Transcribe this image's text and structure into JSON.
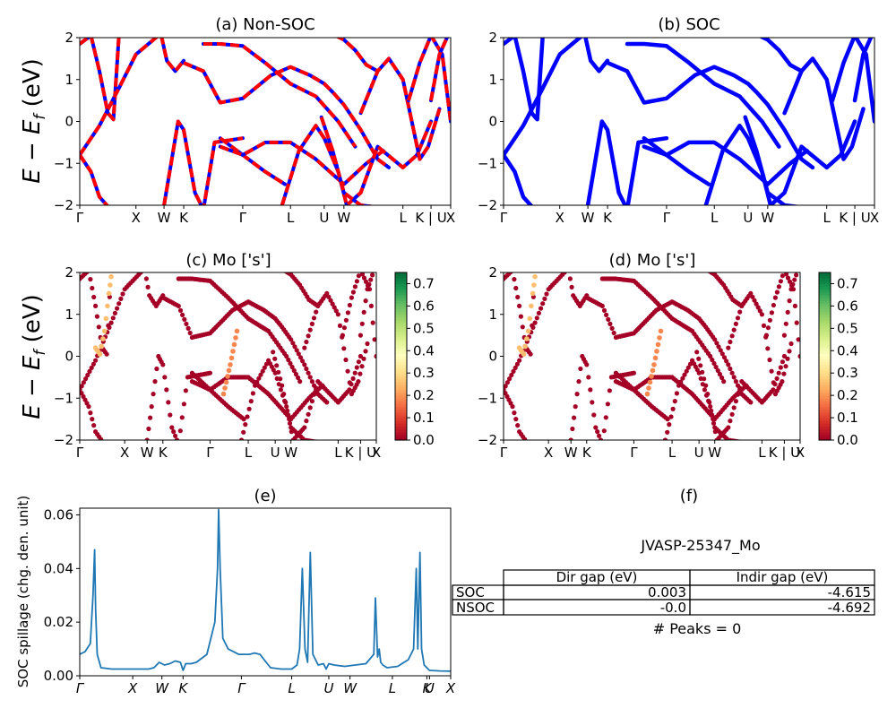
{
  "figure": {
    "ylabel_bands": "E − E",
    "ylabel_bands_sub": "f",
    "ylabel_bands_tail": " (eV)"
  },
  "kpath_labels": [
    "Γ",
    "X",
    "W",
    "K",
    "Γ",
    "L",
    "U",
    "W",
    "L",
    "K | U",
    "X"
  ],
  "kpath_labels_e": [
    "Γ",
    "X",
    "W",
    "K",
    "Γ",
    "L",
    "U",
    "W",
    "L",
    "K",
    "U",
    "X"
  ],
  "colors": {
    "nonsoc_solid": "#0000ff",
    "nonsoc_dash": "#ff0000",
    "soc": "#0000ff",
    "spillage": "#1f77b4"
  },
  "colorbar": {
    "colormap": "RdYlGn",
    "ticks": [
      "0.0",
      "0.1",
      "0.2",
      "0.3",
      "0.4",
      "0.5",
      "0.6",
      "0.7"
    ],
    "range": [
      0,
      0.75
    ]
  },
  "panel_f": {
    "title": "(f)",
    "material": "JVASP-25347_Mo",
    "table": {
      "headers": [
        "",
        "Dir gap (eV)",
        "Indir gap (eV)"
      ],
      "rows": [
        [
          "SOC",
          "0.003",
          "-4.615"
        ],
        [
          "NSOC",
          "-0.0",
          "-4.692"
        ]
      ]
    },
    "peaks": "# Peaks = 0"
  },
  "chart_data": [
    {
      "id": "a",
      "type": "line",
      "title": "(a) Non-SOC",
      "ylim": [
        -2,
        2
      ],
      "yticks": [
        "2",
        "1",
        "0",
        "−1",
        "−2"
      ],
      "xticks": [
        "Γ",
        "X",
        "W",
        "K",
        "Γ",
        "L",
        "U",
        "W",
        "L",
        "K | U",
        "X"
      ],
      "kpos": [
        0,
        1.0,
        1.5,
        1.85,
        2.9,
        3.75,
        4.35,
        4.7,
        5.75,
        6.25,
        6.6
      ],
      "series": [
        {
          "x": [
            0,
            0.2,
            0.35,
            0.5,
            0.6,
            0.7
          ],
          "y": [
            1.85,
            2.05,
            1.2,
            0.2,
            0.05,
            2.1
          ]
        },
        {
          "x": [
            0,
            0.35,
            0.7,
            1.0,
            1.4,
            1.5
          ],
          "y": [
            -0.8,
            -0.1,
            0.8,
            1.6,
            2.05,
            2.1
          ]
        },
        {
          "x": [
            0,
            0.2,
            0.35,
            0.55
          ],
          "y": [
            -0.8,
            -1.2,
            -1.8,
            -2.1
          ]
        },
        {
          "x": [
            1.45,
            1.55,
            1.7,
            1.85
          ],
          "y": [
            2.05,
            1.45,
            1.2,
            1.45
          ]
        },
        {
          "x": [
            1.5,
            1.6,
            1.75,
            1.85,
            2.05,
            2.2,
            2.4,
            2.9
          ],
          "y": [
            -2.0,
            -1.2,
            0.0,
            -0.2,
            -1.7,
            -2.1,
            -0.5,
            -0.4
          ]
        },
        {
          "x": [
            1.85,
            2.2,
            2.5,
            2.9,
            3.4,
            3.75,
            4.1,
            4.35,
            4.5,
            4.7,
            5.0,
            5.3,
            5.5
          ],
          "y": [
            1.4,
            1.2,
            0.45,
            0.55,
            1.1,
            1.3,
            1.1,
            0.9,
            0.7,
            0.4,
            -0.2,
            -0.9,
            -1.1
          ]
        },
        {
          "x": [
            2.2,
            2.5,
            2.9,
            3.3,
            3.75,
            4.2,
            4.6,
            4.9
          ],
          "y": [
            1.85,
            1.85,
            1.8,
            1.4,
            0.9,
            0.6,
            0.0,
            -0.6
          ]
        },
        {
          "x": [
            2.5,
            2.9,
            3.3,
            3.65
          ],
          "y": [
            -0.4,
            -0.8,
            -1.2,
            -1.5
          ]
        },
        {
          "x": [
            2.5,
            2.9,
            3.3,
            3.75,
            4.2,
            4.7,
            5.1,
            5.4
          ],
          "y": [
            -0.6,
            -0.8,
            -0.5,
            -0.5,
            -0.9,
            -1.5,
            -1.0,
            -0.7
          ]
        },
        {
          "x": [
            3.6,
            3.9,
            4.2,
            4.35,
            4.6,
            4.75,
            5.0,
            5.3,
            5.75,
            6.0,
            6.25
          ],
          "y": [
            -2.0,
            -0.7,
            -0.1,
            -0.4,
            -1.2,
            -2.0,
            -1.7,
            -0.6,
            -1.1,
            -0.8,
            0.0
          ]
        },
        {
          "x": [
            4.3,
            4.5,
            4.7,
            5.0,
            5.3,
            5.55
          ],
          "y": [
            0.1,
            -0.7,
            -1.7,
            -2.0,
            -2.05,
            -2.1
          ]
        },
        {
          "x": [
            4.55,
            4.7,
            4.9,
            5.1,
            5.3
          ],
          "y": [
            2.05,
            1.95,
            1.7,
            1.35,
            1.2
          ]
        },
        {
          "x": [
            5.0,
            5.3,
            5.5,
            5.75,
            6.05,
            6.2,
            6.4
          ],
          "y": [
            0.2,
            1.2,
            1.5,
            1.0,
            -0.9,
            -0.6,
            0.3
          ]
        },
        {
          "x": [
            5.85,
            6.05,
            6.25,
            6.45,
            6.6
          ],
          "y": [
            0.5,
            1.4,
            2.05,
            1.6,
            0.0
          ]
        },
        {
          "x": [
            6.25,
            6.4,
            6.55,
            6.6
          ],
          "y": [
            0.5,
            1.6,
            2.05,
            2.1
          ]
        }
      ]
    },
    {
      "id": "b",
      "type": "line",
      "title": "(b) SOC",
      "ylim": [
        -2,
        2
      ],
      "yticks": [
        "2",
        "1",
        "0",
        "−1",
        "−2"
      ],
      "xticks": [
        "Γ",
        "X",
        "W",
        "K",
        "Γ",
        "L",
        "U",
        "W",
        "L",
        "K | U",
        "X"
      ],
      "kpos": [
        0,
        1.0,
        1.5,
        1.85,
        2.9,
        3.75,
        4.35,
        4.7,
        5.75,
        6.25,
        6.6
      ],
      "series": [
        {
          "x": [
            0,
            0.2,
            0.35,
            0.5,
            0.6,
            0.7
          ],
          "y": [
            1.85,
            2.05,
            1.2,
            0.2,
            0.05,
            2.1
          ]
        },
        {
          "x": [
            0,
            0.35,
            0.7,
            1.0,
            1.4,
            1.5
          ],
          "y": [
            -0.8,
            -0.1,
            0.8,
            1.6,
            2.05,
            2.1
          ]
        },
        {
          "x": [
            0,
            0.2,
            0.35,
            0.55
          ],
          "y": [
            -0.8,
            -1.2,
            -1.8,
            -2.1
          ]
        },
        {
          "x": [
            1.45,
            1.55,
            1.7,
            1.85
          ],
          "y": [
            2.05,
            1.45,
            1.2,
            1.45
          ]
        },
        {
          "x": [
            1.5,
            1.6,
            1.75,
            1.85,
            2.05,
            2.2,
            2.4,
            2.9
          ],
          "y": [
            -2.0,
            -1.2,
            0.0,
            -0.2,
            -1.7,
            -2.1,
            -0.5,
            -0.4
          ]
        },
        {
          "x": [
            1.85,
            2.2,
            2.5,
            2.9,
            3.4,
            3.75,
            4.1,
            4.35,
            4.5,
            4.7,
            5.0,
            5.3,
            5.5
          ],
          "y": [
            1.4,
            1.2,
            0.45,
            0.55,
            1.1,
            1.3,
            1.1,
            0.9,
            0.7,
            0.4,
            -0.2,
            -0.9,
            -1.1
          ]
        },
        {
          "x": [
            2.2,
            2.5,
            2.9,
            3.3,
            3.75,
            4.2,
            4.6,
            4.9
          ],
          "y": [
            1.85,
            1.85,
            1.8,
            1.4,
            0.9,
            0.6,
            0.0,
            -0.6
          ]
        },
        {
          "x": [
            2.5,
            2.9,
            3.3,
            3.65
          ],
          "y": [
            -0.4,
            -0.8,
            -1.2,
            -1.5
          ]
        },
        {
          "x": [
            2.5,
            2.9,
            3.3,
            3.75,
            4.2,
            4.7,
            5.1,
            5.4
          ],
          "y": [
            -0.6,
            -0.8,
            -0.5,
            -0.5,
            -0.9,
            -1.5,
            -1.0,
            -0.7
          ]
        },
        {
          "x": [
            3.6,
            3.9,
            4.2,
            4.35,
            4.6,
            4.75,
            5.0,
            5.3,
            5.75,
            6.0,
            6.25
          ],
          "y": [
            -2.0,
            -0.7,
            -0.1,
            -0.4,
            -1.2,
            -2.0,
            -1.7,
            -0.6,
            -1.1,
            -0.8,
            0.0
          ]
        },
        {
          "x": [
            4.3,
            4.5,
            4.7,
            5.0,
            5.3,
            5.55
          ],
          "y": [
            0.1,
            -0.7,
            -1.7,
            -2.0,
            -2.05,
            -2.1
          ]
        },
        {
          "x": [
            4.55,
            4.7,
            4.9,
            5.1,
            5.3
          ],
          "y": [
            2.05,
            1.95,
            1.7,
            1.35,
            1.2
          ]
        },
        {
          "x": [
            5.0,
            5.3,
            5.5,
            5.75,
            6.05,
            6.2,
            6.4
          ],
          "y": [
            0.2,
            1.2,
            1.5,
            1.0,
            -0.9,
            -0.6,
            0.3
          ]
        },
        {
          "x": [
            5.85,
            6.05,
            6.25,
            6.45,
            6.6
          ],
          "y": [
            0.5,
            1.4,
            2.05,
            1.6,
            0.0
          ]
        },
        {
          "x": [
            6.25,
            6.4,
            6.55,
            6.6
          ],
          "y": [
            0.5,
            1.6,
            2.05,
            2.1
          ]
        }
      ]
    },
    {
      "id": "c",
      "type": "scatter",
      "title": "(c)  Mo ['s']",
      "ylim": [
        -2,
        2
      ],
      "yticks": [
        "2",
        "1",
        "0",
        "−1",
        "−2"
      ],
      "xticks": [
        "Γ",
        "X",
        "W",
        "K",
        "Γ",
        "L",
        "U",
        "W",
        "L",
        "K | U",
        "X"
      ],
      "kpos": [
        0,
        1.0,
        1.5,
        1.85,
        2.9,
        3.75,
        4.35,
        4.7,
        5.75,
        6.25,
        6.6
      ],
      "highlight": [
        {
          "x": [
            0.35,
            0.45,
            0.55,
            0.65,
            0.7
          ],
          "y": [
            0.2,
            0.05,
            0.6,
            1.5,
            1.9
          ],
          "value": 0.25
        },
        {
          "x": [
            3.2,
            3.35,
            3.5
          ],
          "y": [
            -0.9,
            -0.2,
            0.6
          ],
          "value": 0.18
        }
      ]
    },
    {
      "id": "d",
      "type": "scatter",
      "title": "(d) Mo ['s']",
      "ylim": [
        -2,
        2
      ],
      "yticks": [
        "2",
        "1",
        "0",
        "−1",
        "−2"
      ],
      "xticks": [
        "Γ",
        "X",
        "W",
        "K",
        "Γ",
        "L",
        "U",
        "W",
        "L",
        "K | U",
        "X"
      ],
      "kpos": [
        0,
        1.0,
        1.5,
        1.85,
        2.9,
        3.75,
        4.35,
        4.7,
        5.75,
        6.25,
        6.6
      ],
      "highlight": [
        {
          "x": [
            0.35,
            0.45,
            0.55,
            0.65,
            0.7
          ],
          "y": [
            0.2,
            0.05,
            0.6,
            1.5,
            1.9
          ],
          "value": 0.25
        },
        {
          "x": [
            3.2,
            3.35,
            3.5
          ],
          "y": [
            -0.9,
            -0.2,
            0.6
          ],
          "value": 0.18
        }
      ]
    },
    {
      "id": "e",
      "type": "line",
      "title": "(e)",
      "ylabel": "SOC spillage (chg. den. unit)",
      "ylim": [
        0,
        0.0625
      ],
      "yticks": [
        "0.00",
        "0.02",
        "0.04",
        "0.06"
      ],
      "ytick_values": [
        0,
        0.02,
        0.04,
        0.06
      ],
      "xticks": [
        "Γ",
        "X",
        "W",
        "K",
        "Γ",
        "L",
        "U",
        "W",
        "L",
        "K",
        "U",
        "X"
      ],
      "kpos": [
        0,
        1.0,
        1.55,
        1.95,
        3.05,
        4.0,
        4.7,
        5.1,
        5.9,
        6.55,
        6.6,
        7.0
      ],
      "x": [
        0,
        0.1,
        0.2,
        0.25,
        0.28,
        0.3,
        0.33,
        0.4,
        0.6,
        0.9,
        1.2,
        1.3,
        1.4,
        1.5,
        1.6,
        1.7,
        1.8,
        1.9,
        1.95,
        2.0,
        2.1,
        2.2,
        2.4,
        2.55,
        2.6,
        2.62,
        2.65,
        2.7,
        2.8,
        3.0,
        3.2,
        3.3,
        3.4,
        3.6,
        3.8,
        4.0,
        4.1,
        4.15,
        4.2,
        4.25,
        4.3,
        4.35,
        4.4,
        4.5,
        4.6,
        4.65,
        4.7,
        4.8,
        5.0,
        5.2,
        5.4,
        5.55,
        5.58,
        5.62,
        5.65,
        5.68,
        5.72,
        5.8,
        6.0,
        6.2,
        6.3,
        6.35,
        6.38,
        6.42,
        6.45,
        6.5,
        6.6,
        6.8,
        7.0
      ],
      "y": [
        0.008,
        0.009,
        0.012,
        0.03,
        0.047,
        0.025,
        0.008,
        0.003,
        0.0025,
        0.0025,
        0.0025,
        0.0025,
        0.003,
        0.005,
        0.004,
        0.0045,
        0.0055,
        0.005,
        0.002,
        0.0045,
        0.0045,
        0.005,
        0.008,
        0.02,
        0.04,
        0.062,
        0.04,
        0.014,
        0.01,
        0.008,
        0.008,
        0.0085,
        0.008,
        0.003,
        0.0025,
        0.0025,
        0.004,
        0.01,
        0.04,
        0.01,
        0.005,
        0.046,
        0.008,
        0.004,
        0.0045,
        0.0025,
        0.0045,
        0.004,
        0.0035,
        0.004,
        0.0045,
        0.008,
        0.029,
        0.007,
        0.01,
        0.005,
        0.004,
        0.003,
        0.0035,
        0.006,
        0.01,
        0.04,
        0.01,
        0.046,
        0.01,
        0.004,
        0.002,
        0.0018,
        0.0017
      ]
    }
  ]
}
